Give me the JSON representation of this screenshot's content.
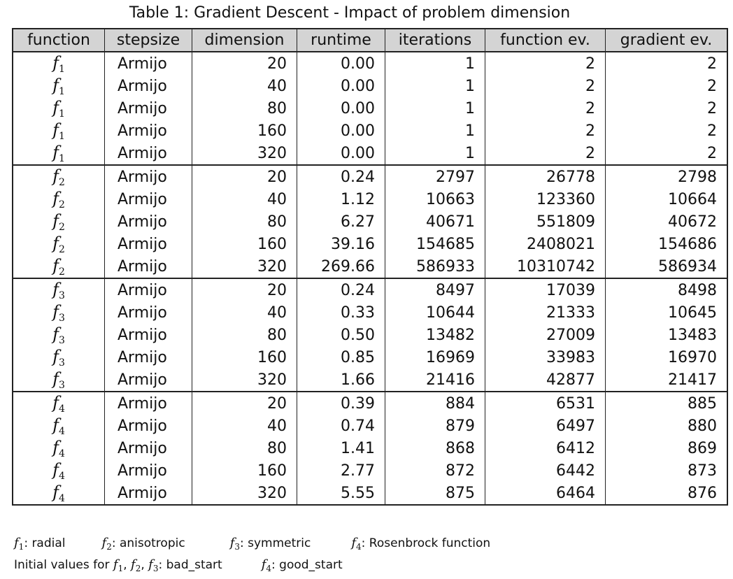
{
  "title": "Table 1: Gradient Descent - Impact of problem dimension",
  "table": {
    "columns": [
      "function",
      "stepsize",
      "dimension",
      "runtime",
      "iterations",
      "function ev.",
      "gradient ev."
    ],
    "rows": [
      [
        {
          "symbol": "f",
          "subscript": "1"
        },
        "Armijo",
        "20",
        "0.00",
        "1",
        "2",
        "2"
      ],
      [
        {
          "symbol": "f",
          "subscript": "1"
        },
        "Armijo",
        "40",
        "0.00",
        "1",
        "2",
        "2"
      ],
      [
        {
          "symbol": "f",
          "subscript": "1"
        },
        "Armijo",
        "80",
        "0.00",
        "1",
        "2",
        "2"
      ],
      [
        {
          "symbol": "f",
          "subscript": "1"
        },
        "Armijo",
        "160",
        "0.00",
        "1",
        "2",
        "2"
      ],
      [
        {
          "symbol": "f",
          "subscript": "1"
        },
        "Armijo",
        "320",
        "0.00",
        "1",
        "2",
        "2"
      ],
      [
        {
          "symbol": "f",
          "subscript": "2"
        },
        "Armijo",
        "20",
        "0.24",
        "2797",
        "26778",
        "2798"
      ],
      [
        {
          "symbol": "f",
          "subscript": "2"
        },
        "Armijo",
        "40",
        "1.12",
        "10663",
        "123360",
        "10664"
      ],
      [
        {
          "symbol": "f",
          "subscript": "2"
        },
        "Armijo",
        "80",
        "6.27",
        "40671",
        "551809",
        "40672"
      ],
      [
        {
          "symbol": "f",
          "subscript": "2"
        },
        "Armijo",
        "160",
        "39.16",
        "154685",
        "2408021",
        "154686"
      ],
      [
        {
          "symbol": "f",
          "subscript": "2"
        },
        "Armijo",
        "320",
        "269.66",
        "586933",
        "10310742",
        "586934"
      ],
      [
        {
          "symbol": "f",
          "subscript": "3"
        },
        "Armijo",
        "20",
        "0.24",
        "8497",
        "17039",
        "8498"
      ],
      [
        {
          "symbol": "f",
          "subscript": "3"
        },
        "Armijo",
        "40",
        "0.33",
        "10644",
        "21333",
        "10645"
      ],
      [
        {
          "symbol": "f",
          "subscript": "3"
        },
        "Armijo",
        "80",
        "0.50",
        "13482",
        "27009",
        "13483"
      ],
      [
        {
          "symbol": "f",
          "subscript": "3"
        },
        "Armijo",
        "160",
        "0.85",
        "16969",
        "33983",
        "16970"
      ],
      [
        {
          "symbol": "f",
          "subscript": "3"
        },
        "Armijo",
        "320",
        "1.66",
        "21416",
        "42877",
        "21417"
      ],
      [
        {
          "symbol": "f",
          "subscript": "4"
        },
        "Armijo",
        "20",
        "0.39",
        "884",
        "6531",
        "885"
      ],
      [
        {
          "symbol": "f",
          "subscript": "4"
        },
        "Armijo",
        "40",
        "0.74",
        "879",
        "6497",
        "880"
      ],
      [
        {
          "symbol": "f",
          "subscript": "4"
        },
        "Armijo",
        "80",
        "1.41",
        "868",
        "6412",
        "869"
      ],
      [
        {
          "symbol": "f",
          "subscript": "4"
        },
        "Armijo",
        "160",
        "2.77",
        "872",
        "6442",
        "873"
      ],
      [
        {
          "symbol": "f",
          "subscript": "4"
        },
        "Armijo",
        "320",
        "5.55",
        "875",
        "6464",
        "876"
      ]
    ]
  },
  "notes": {
    "legend": [
      {
        "symbol": "f",
        "subscript": "1",
        "text": ": radial"
      },
      {
        "symbol": "f",
        "subscript": "2",
        "text": ": anisotropic"
      },
      {
        "symbol": "f",
        "subscript": "3",
        "text": ": symmetric"
      },
      {
        "symbol": "f",
        "subscript": "4",
        "text": ": Rosenbrock function"
      }
    ],
    "initial": [
      {
        "prefix": "Initial values for ",
        "separator": ", ",
        "functions": [
          {
            "symbol": "f",
            "subscript": "1"
          },
          {
            "symbol": "f",
            "subscript": "2"
          },
          {
            "symbol": "f",
            "subscript": "3"
          }
        ],
        "text": ": bad_start"
      },
      {
        "functions": [
          {
            "symbol": "f",
            "subscript": "4"
          }
        ],
        "text": ": good_start"
      }
    ]
  }
}
